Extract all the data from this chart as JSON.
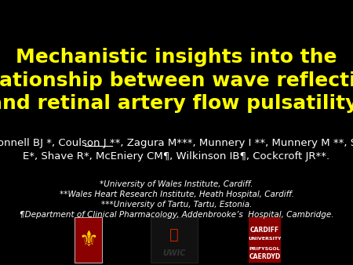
{
  "background_color": "#000000",
  "title_line1": "Mechanistic insights into the",
  "title_line2": "relationship between wave reflection",
  "title_line3": "and retinal artery flow pulsatility.",
  "title_color": "#FFFF00",
  "title_fontsize": 18,
  "title_bold": true,
  "authors_line1": "McDonnell BJ *, Coulson J **, Zagura M***, Munnery I **, Munnery M **, Stohr",
  "authors_line2": "E*, Shave R*, McEniery CM¶, Wilkinson IB¶, Cockcroft JR**.",
  "authors_color": "#FFFFFF",
  "authors_fontsize": 9.5,
  "authors_underline": "McDonnell BJ",
  "affil1": "*University of Wales Institute, Cardiff.",
  "affil2": "**Wales Heart Research Institute, Heath Hospital, Cardiff.",
  "affil3": "***University of Tartu, Tartu, Estonia.",
  "affil4": "¶Department of Clinical Pharmacology, Addenbrooke’s  Hospital, Cambridge.",
  "affil_color": "#FFFFFF",
  "affil_fontsize": 7.5,
  "affil_italic": true
}
